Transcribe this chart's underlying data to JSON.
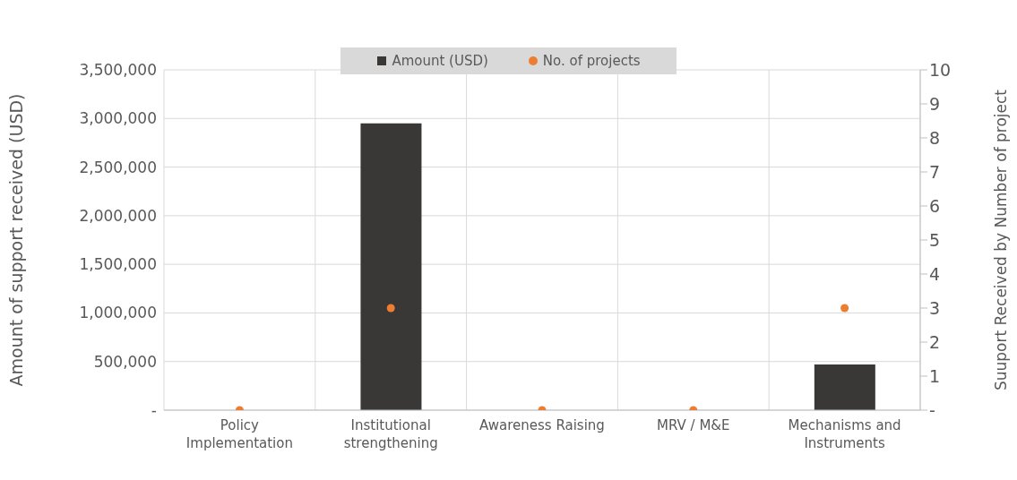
{
  "chart_data": {
    "type": "bar",
    "categories": [
      "Policy Implementation",
      "Institutional strengthening",
      "Awareness Raising",
      "MRV / M&E",
      "Mechanisms and Instruments"
    ],
    "series": [
      {
        "name": "Amount (USD)",
        "color": "#393836",
        "values": [
          0,
          2950000,
          0,
          0,
          470000
        ]
      },
      {
        "name": "No. of projects",
        "type": "scatter",
        "axis": "y2",
        "color": "#ed7d31",
        "values": [
          0,
          3,
          0,
          0,
          3
        ]
      }
    ],
    "ylabel": "Amount of support received (USD)",
    "y2label": "Suuport Received by Number of project",
    "ylim": [
      0,
      3500000
    ],
    "yticks": [
      {
        "value": 0,
        "label": "-"
      },
      {
        "value": 500000,
        "label": "500,000"
      },
      {
        "value": 1000000,
        "label": "1,000,000"
      },
      {
        "value": 1500000,
        "label": "1,500,000"
      },
      {
        "value": 2000000,
        "label": "2,000,000"
      },
      {
        "value": 2500000,
        "label": "2,500,000"
      },
      {
        "value": 3000000,
        "label": "3,000,000"
      },
      {
        "value": 3500000,
        "label": "3,500,000"
      }
    ],
    "y2lim": [
      0,
      10
    ],
    "y2ticks": [
      {
        "value": 0,
        "label": "-"
      },
      1,
      2,
      3,
      4,
      5,
      6,
      7,
      8,
      9,
      10
    ],
    "grid": true,
    "legend": "top",
    "marker": "circle"
  }
}
